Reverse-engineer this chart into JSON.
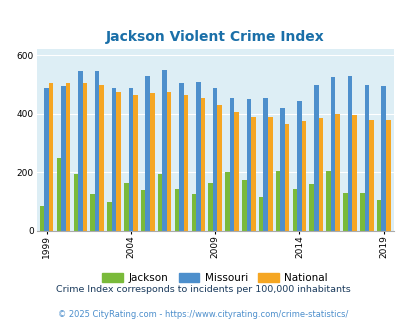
{
  "title": "Jackson Violent Crime Index",
  "years": [
    1999,
    2000,
    2001,
    2002,
    2003,
    2004,
    2005,
    2006,
    2007,
    2008,
    2009,
    2010,
    2011,
    2012,
    2013,
    2014,
    2015,
    2016,
    2017,
    2018,
    2019
  ],
  "jackson": [
    85,
    250,
    195,
    125,
    100,
    165,
    140,
    195,
    145,
    125,
    165,
    200,
    175,
    115,
    205,
    145,
    160,
    205,
    130,
    130,
    105
  ],
  "missouri": [
    490,
    495,
    545,
    545,
    490,
    490,
    530,
    550,
    505,
    510,
    490,
    455,
    450,
    455,
    420,
    445,
    500,
    525,
    530,
    500,
    495
  ],
  "national": [
    505,
    505,
    505,
    500,
    475,
    465,
    470,
    475,
    465,
    455,
    430,
    405,
    390,
    390,
    365,
    375,
    385,
    400,
    395,
    380,
    380
  ],
  "colors": {
    "jackson": "#7aba3a",
    "missouri": "#4d8fcc",
    "national": "#f5a623"
  },
  "bg_color": "#ddeef5",
  "ylim": [
    0,
    620
  ],
  "yticks": [
    0,
    200,
    400,
    600
  ],
  "xlabel_ticks": [
    1999,
    2004,
    2009,
    2014,
    2019
  ],
  "footnote1": "Crime Index corresponds to incidents per 100,000 inhabitants",
  "footnote2": "© 2025 CityRating.com - https://www.cityrating.com/crime-statistics/",
  "title_color": "#1a6fa8",
  "footnote1_color": "#1a3a5c",
  "footnote2_color": "#4d8fcc"
}
